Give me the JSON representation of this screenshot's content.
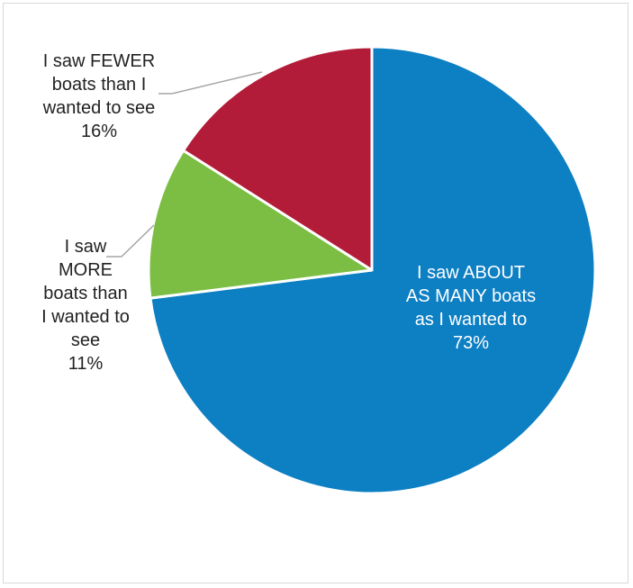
{
  "chart_data": {
    "type": "pie",
    "title": "",
    "start_angle_deg": 0,
    "direction": "clockwise",
    "slices": [
      {
        "label_lines": [
          "I saw ABOUT",
          "AS MANY boats",
          "as I wanted to",
          "73%"
        ],
        "value": 73,
        "color": "#0d7fc3",
        "text_color": "#ffffff"
      },
      {
        "label_lines": [
          "I saw",
          "MORE",
          "boats than",
          "I wanted to",
          "see",
          "11%"
        ],
        "value": 11,
        "color": "#7cbe43",
        "text_color": "#222222"
      },
      {
        "label_lines": [
          "I saw FEWER",
          "boats than I",
          "wanted to see",
          "16%"
        ],
        "value": 16,
        "color": "#b31c38",
        "text_color": "#222222"
      }
    ],
    "legend": "none",
    "leader_line_color": "#a6a6a6"
  }
}
